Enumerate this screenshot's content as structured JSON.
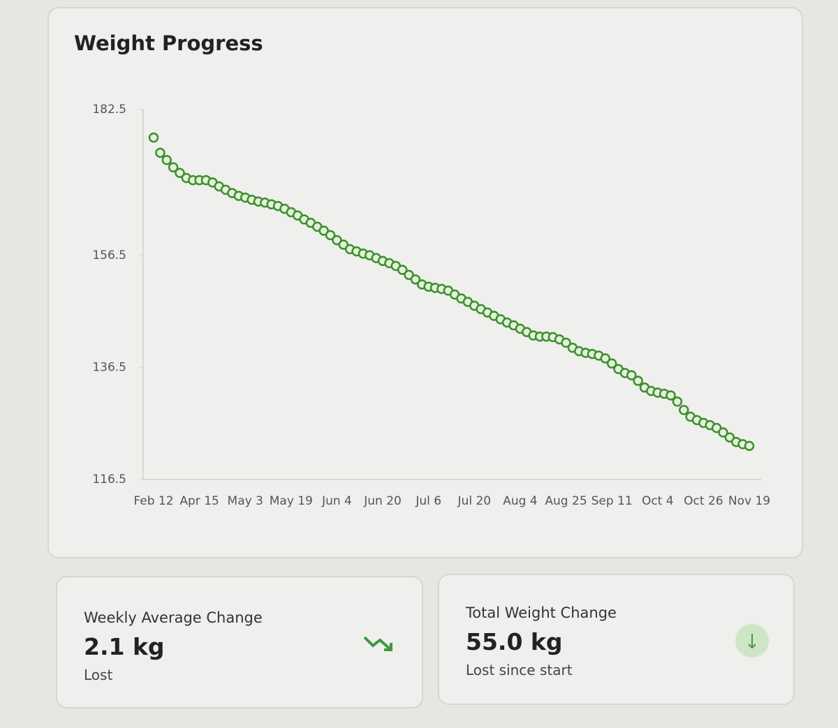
{
  "chart_data": {
    "type": "line",
    "title": "Weight Progress",
    "categories": [
      "Feb 12",
      null,
      null,
      null,
      null,
      null,
      null,
      "Apr 15",
      null,
      null,
      null,
      null,
      null,
      null,
      "May 3",
      null,
      null,
      null,
      null,
      null,
      null,
      "May 19",
      null,
      null,
      null,
      null,
      null,
      null,
      "Jun 4",
      null,
      null,
      null,
      null,
      null,
      null,
      "Jun 20",
      null,
      null,
      null,
      null,
      null,
      null,
      "Jul 6",
      null,
      null,
      null,
      null,
      null,
      null,
      "Jul 20",
      null,
      null,
      null,
      null,
      null,
      null,
      "Aug 4",
      null,
      null,
      null,
      null,
      null,
      null,
      "Aug 25",
      null,
      null,
      null,
      null,
      null,
      null,
      "Sep 11",
      null,
      null,
      null,
      null,
      null,
      null,
      "Oct 4",
      null,
      null,
      null,
      null,
      null,
      null,
      "Oct 26",
      null,
      null,
      null,
      null,
      null,
      null,
      "Nov 19"
    ],
    "values": [
      177.5,
      174.8,
      173.5,
      172.2,
      171.2,
      170.3,
      169.9,
      169.9,
      169.9,
      169.5,
      168.8,
      168.2,
      167.6,
      167.1,
      166.8,
      166.4,
      166.1,
      165.9,
      165.6,
      165.3,
      164.8,
      164.2,
      163.6,
      162.9,
      162.3,
      161.6,
      160.9,
      160.1,
      159.2,
      158.4,
      157.6,
      157.2,
      156.8,
      156.5,
      156.0,
      155.5,
      155.1,
      154.6,
      153.9,
      153.0,
      152.2,
      151.3,
      150.9,
      150.7,
      150.5,
      150.2,
      149.5,
      148.8,
      148.2,
      147.5,
      146.9,
      146.3,
      145.7,
      145.1,
      144.5,
      144.0,
      143.4,
      142.8,
      142.2,
      142.0,
      142.0,
      141.9,
      141.5,
      140.9,
      140.0,
      139.4,
      139.1,
      138.9,
      138.6,
      138.1,
      137.2,
      136.2,
      135.5,
      135.1,
      134.1,
      132.9,
      132.3,
      132.0,
      131.8,
      131.5,
      130.4,
      128.9,
      127.7,
      127.1,
      126.6,
      126.2,
      125.7,
      124.9,
      124.0,
      123.2,
      122.8,
      122.5
    ],
    "color": "#3c8f2c",
    "ylim": [
      116.5,
      182.5
    ],
    "yticks": [
      116.5,
      136.5,
      156.5,
      182.5
    ],
    "grid": false
  },
  "cards": [
    {
      "title": "Weekly Average Change",
      "value": "2.1 kg",
      "caption": "Lost"
    },
    {
      "title": "Total Weight Change",
      "value": "55.0 kg",
      "caption": "Lost since start"
    }
  ]
}
